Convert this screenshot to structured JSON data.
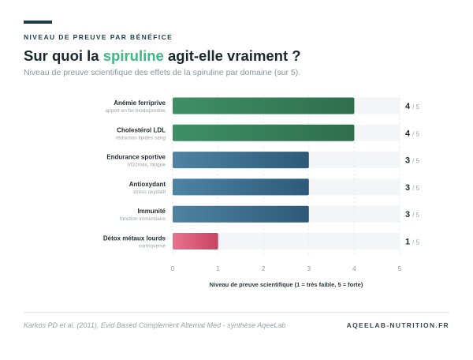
{
  "header": {
    "kicker": "NIVEAU DE PREUVE PAR BÉNÉFICE",
    "title_before": "Sur quoi la ",
    "title_highlight": "spiruline",
    "title_after": " agit-elle vraiment ?",
    "subtitle": "Niveau de preuve scientifique des effets de la spiruline par domaine (sur 5)."
  },
  "chart_data": {
    "type": "bar",
    "orientation": "horizontal",
    "categories": [
      "Anémie ferriprive",
      "Cholestérol LDL",
      "Endurance sportive",
      "Antioxydant",
      "Immunité",
      "Détox métaux lourds"
    ],
    "sublabels": [
      "apport en fer biodisponible",
      "réduction lipides sang",
      "VO2max, fatigue",
      "stress oxydatif",
      "fonction immunitaire",
      "controversé"
    ],
    "values": [
      4,
      4,
      3,
      3,
      3,
      1
    ],
    "value_labels": [
      "4",
      "4",
      "3",
      "3",
      "3",
      "1"
    ],
    "max_suffix": "/ 5",
    "xlabel": "Niveau de preuve scientifique (1 = très faible, 5 = forte)",
    "xlim": [
      0,
      5
    ],
    "xticks": [
      "0",
      "1",
      "2",
      "3",
      "4",
      "5"
    ],
    "grid": true,
    "colors": {
      "strong": [
        "#2f6e4d",
        "#3f8f66"
      ],
      "moderate": [
        "#2d5a78",
        "#4f83a3"
      ],
      "weak": [
        "#c74560",
        "#e8728c"
      ],
      "track": "#f4f5f6"
    }
  },
  "footer": {
    "source": "Karkos PD et al. (2011), Evid Based Complement Alternat Med - synthèse AqeeLab",
    "brand": "AQEELAB-NUTRITION.FR"
  }
}
